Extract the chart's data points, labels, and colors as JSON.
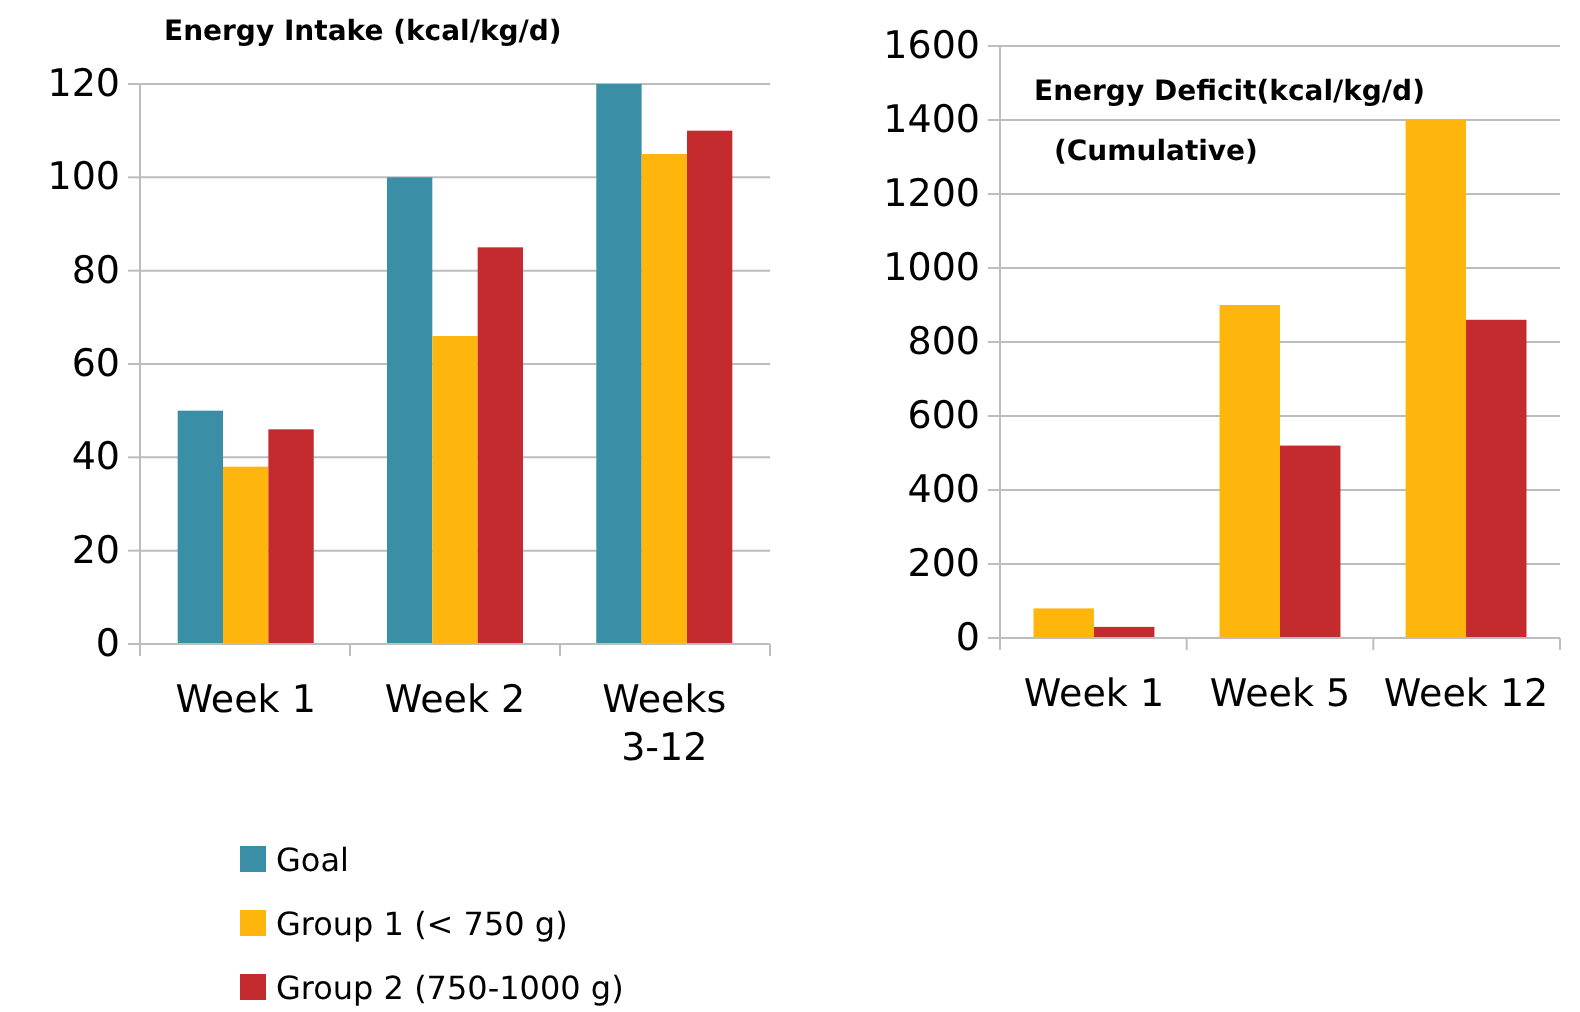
{
  "chart_data": [
    {
      "type": "bar",
      "title": "Energy Intake (kcal/kg/d)",
      "categories": [
        "Week 1",
        "Week 2",
        "Weeks 3-12"
      ],
      "series": [
        {
          "name": "Goal",
          "color": "#3a8fa6",
          "values": [
            50,
            100,
            120
          ]
        },
        {
          "name": "Group 1 (< 750 g)",
          "color": "#ffb60c",
          "values": [
            38,
            66,
            105
          ]
        },
        {
          "name": "Group 2 (750-1000 g)",
          "color": "#c42b2e",
          "values": [
            46,
            85,
            110
          ]
        }
      ],
      "ylim": [
        0,
        120
      ],
      "yticks": [
        0,
        20,
        40,
        60,
        80,
        100,
        120
      ],
      "grid": "y",
      "legend": "bottom"
    },
    {
      "type": "bar",
      "title": "Energy Deficit(kcal/kg/d)",
      "subtitle": "(Cumulative)",
      "categories": [
        "Week 1",
        "Week 5",
        "Week 12"
      ],
      "series": [
        {
          "color": "#ffb60c",
          "values": [
            80,
            900,
            1400
          ]
        },
        {
          "color": "#c42b2e",
          "values": [
            30,
            520,
            860
          ]
        }
      ],
      "ylim": [
        0,
        1600
      ],
      "yticks": [
        0,
        200,
        400,
        600,
        800,
        1000,
        1200,
        1400,
        1600
      ],
      "grid": "y"
    }
  ]
}
